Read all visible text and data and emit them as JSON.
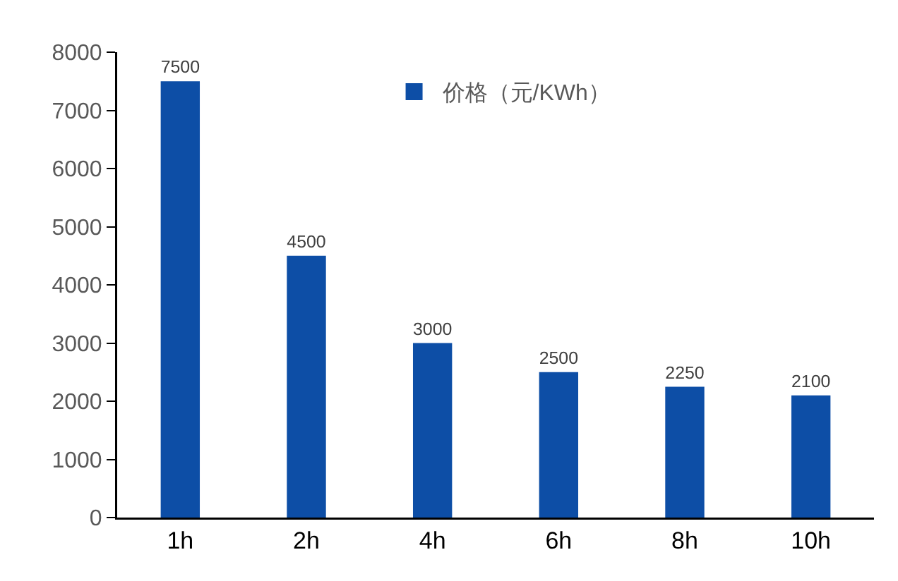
{
  "chart_data": {
    "type": "bar",
    "categories": [
      "1h",
      "2h",
      "4h",
      "6h",
      "8h",
      "10h"
    ],
    "series": [
      {
        "name": "价格（元/KWh）",
        "color": "#0d4ea6",
        "values": [
          7500,
          4500,
          3000,
          2500,
          2250,
          2100
        ]
      }
    ],
    "ylim": [
      0,
      8000
    ],
    "yticks": [
      0,
      1000,
      2000,
      3000,
      4000,
      5000,
      6000,
      7000,
      8000
    ],
    "data_labels": true,
    "grid": false,
    "legend": "top"
  }
}
